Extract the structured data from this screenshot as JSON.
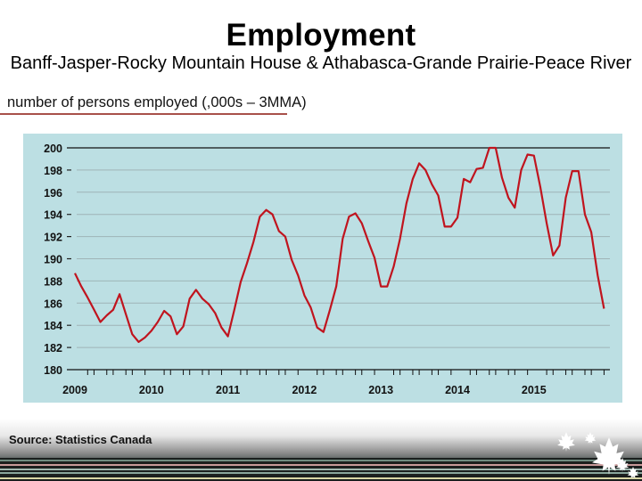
{
  "slide": {
    "title": "Employment",
    "subtitle": "Banff-Jasper-Rocky Mountain House & Athabasca-Grande Prairie-Peace River",
    "units_label": "number of persons employed (,000s – 3MMA)",
    "source": "Source: Statistics Canada",
    "colors": {
      "plot_background": "#bcdfe3",
      "line": "#c0141e",
      "units_underline": "#a8504a",
      "gridline": "#9fb4b7"
    },
    "decorations": [
      "maple-leaf-icon",
      "maple-leaf-icon",
      "maple-leaf-icon",
      "maple-leaf-icon",
      "maple-leaf-icon"
    ]
  },
  "chart_data": {
    "type": "line",
    "title": "Employment",
    "subtitle": "Banff-Jasper-Rocky Mountain House & Athabasca-Grande Prairie-Peace River",
    "xlabel": "",
    "ylabel": "number of persons employed (,000s – 3MMA)",
    "ylim": [
      180,
      200
    ],
    "yticks": [
      180,
      182,
      184,
      186,
      188,
      190,
      192,
      194,
      196,
      198,
      200
    ],
    "xtick_labels": [
      "2009",
      "2010",
      "2011",
      "2012",
      "2013",
      "2014",
      "2015"
    ],
    "grid": true,
    "legend": "none",
    "frequency": "monthly",
    "x_start": "2009-01",
    "x_end": "2015-12",
    "series": [
      {
        "name": "Employment (3MMA, ,000s)",
        "values": [
          188.7,
          187.5,
          186.5,
          185.4,
          184.3,
          184.9,
          185.4,
          186.8,
          185.0,
          183.2,
          182.5,
          182.9,
          183.5,
          184.3,
          185.3,
          184.8,
          183.2,
          183.9,
          186.4,
          187.2,
          186.4,
          185.9,
          185.1,
          183.8,
          183.0,
          185.4,
          187.9,
          189.6,
          191.5,
          193.8,
          194.4,
          194.0,
          192.5,
          192.0,
          189.9,
          188.5,
          186.7,
          185.6,
          183.8,
          183.4,
          185.4,
          187.5,
          191.8,
          193.8,
          194.1,
          193.2,
          191.6,
          190.1,
          187.5,
          187.5,
          189.3,
          191.8,
          195.0,
          197.2,
          198.6,
          198.0,
          196.7,
          195.7,
          192.9,
          192.9,
          193.7,
          197.2,
          196.9,
          198.1,
          198.2,
          200.0,
          200.0,
          197.3,
          195.5,
          194.6,
          198.0,
          199.4,
          199.3,
          196.5,
          193.2,
          190.3,
          191.2,
          195.5,
          197.9,
          197.9,
          194.0,
          192.4,
          188.5,
          185.5
        ]
      }
    ]
  }
}
